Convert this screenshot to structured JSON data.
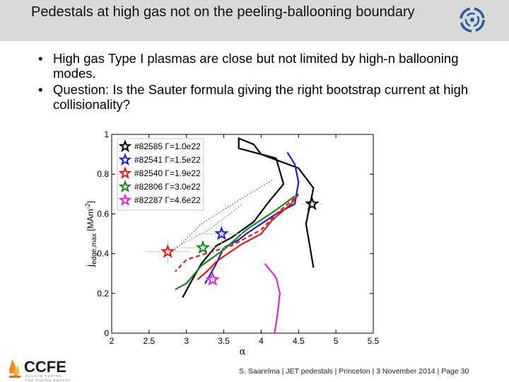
{
  "slide": {
    "title": "Pedestals at high gas not on the peeling-ballooning boundary",
    "bullets": [
      "High gas Type I plasmas are close but not limited by high-n ballooning modes.",
      "Question: Is the Sauter formula giving the right bootstrap current at high collisionality?"
    ],
    "footer": "S. Saarelma | JET pedestals | Princeton | 3 November 2014 | Page 30",
    "ccfe_logo": {
      "letters": "CCFE",
      "tagline_1": "CULHAM CENTRE",
      "tagline_2": "FOR FUSION ENERGY"
    }
  },
  "icons": {
    "top_right_logo": "jet-swirl-logo-icon",
    "bottom_left_logo": "ccfe-flame-logo-icon"
  },
  "chart_data": {
    "type": "line",
    "xlabel": "α",
    "ylabel_main": "j",
    "ylabel_sub": "edge,max",
    "ylabel_unit": "[MAm",
    "ylabel_exp": "-2",
    "ylabel_end": "]",
    "xlim": [
      2,
      5.5
    ],
    "ylim": [
      0,
      1
    ],
    "xticks": [
      2,
      2.5,
      3,
      3.5,
      4,
      4.5,
      5,
      5.5
    ],
    "yticks": [
      0,
      0.2,
      0.4,
      0.6,
      0.8,
      1
    ],
    "legend_position": "top-left",
    "legend": [
      {
        "label": "#82585 Γ=1.0e22",
        "color": "#000000"
      },
      {
        "label": "#82541 Γ=1.5e22",
        "color": "#1c1cd6"
      },
      {
        "label": "#82540 Γ=1.9e22",
        "color": "#e0191f"
      },
      {
        "label": "#82806 Γ=3.0e22",
        "color": "#16881f"
      },
      {
        "label": "#82287 Γ=4.6e22",
        "color": "#e024d8"
      }
    ],
    "boundaries": [
      {
        "color": "#000000",
        "points": [
          [
            4.7,
            0.33
          ],
          [
            4.6,
            0.55
          ],
          [
            4.7,
            0.73
          ],
          [
            4.5,
            0.83
          ],
          [
            4.0,
            0.9
          ],
          [
            3.9,
            0.95
          ],
          [
            3.7,
            0.98
          ],
          [
            3.7,
            0.93
          ],
          [
            4.2,
            0.88
          ],
          [
            4.3,
            0.75
          ],
          [
            4.1,
            0.66
          ],
          [
            3.9,
            0.56
          ],
          [
            3.75,
            0.52
          ],
          [
            3.6,
            0.48
          ],
          [
            3.4,
            0.44
          ],
          [
            3.2,
            0.35
          ],
          [
            3.05,
            0.25
          ],
          [
            2.95,
            0.18
          ]
        ]
      },
      {
        "color": "#1c1cd6",
        "points": [
          [
            4.35,
            0.91
          ],
          [
            4.45,
            0.85
          ],
          [
            4.5,
            0.76
          ],
          [
            4.45,
            0.65
          ],
          [
            4.2,
            0.6
          ],
          [
            4.0,
            0.55
          ],
          [
            3.8,
            0.5
          ],
          [
            3.7,
            0.47
          ],
          [
            3.5,
            0.43
          ],
          [
            3.4,
            0.35
          ],
          [
            3.25,
            0.25
          ]
        ]
      },
      {
        "color": "#e0191f",
        "points": [
          [
            4.5,
            0.7
          ],
          [
            4.4,
            0.65
          ],
          [
            4.15,
            0.57
          ],
          [
            4.0,
            0.5
          ],
          [
            3.75,
            0.45
          ],
          [
            3.55,
            0.4
          ],
          [
            3.4,
            0.36
          ],
          [
            3.3,
            0.32
          ],
          [
            3.15,
            0.27
          ]
        ]
      },
      {
        "color": "#e0191f",
        "dashed": true,
        "points": [
          [
            4.45,
            0.68
          ],
          [
            4.2,
            0.6
          ],
          [
            4.0,
            0.52
          ],
          [
            3.6,
            0.44
          ],
          [
            3.0,
            0.37
          ],
          [
            2.85,
            0.31
          ]
        ]
      },
      {
        "color": "#16881f",
        "points": [
          [
            4.45,
            0.69
          ],
          [
            4.2,
            0.62
          ],
          [
            3.8,
            0.52
          ],
          [
            3.5,
            0.42
          ],
          [
            3.2,
            0.34
          ],
          [
            3.0,
            0.25
          ],
          [
            2.85,
            0.22
          ]
        ]
      },
      {
        "color": "#e024d8",
        "points": [
          [
            4.05,
            0.35
          ],
          [
            4.2,
            0.28
          ],
          [
            4.25,
            0.2
          ],
          [
            4.22,
            0.1
          ],
          [
            4.18,
            0.0
          ]
        ]
      },
      {
        "color": "#1c1cd6",
        "dotted": true,
        "points": [
          [
            2.85,
            0.42
          ],
          [
            3.2,
            0.55
          ],
          [
            3.75,
            0.68
          ],
          [
            4.15,
            0.77
          ]
        ]
      },
      {
        "color": "#16881f",
        "dotted": true,
        "points": [
          [
            2.8,
            0.42
          ],
          [
            3.3,
            0.52
          ],
          [
            3.75,
            0.65
          ]
        ]
      }
    ],
    "points": [
      {
        "x": 4.68,
        "y": 0.65,
        "color": "#000000",
        "xerr": 0.15,
        "yerr": 0.0
      },
      {
        "x": 3.47,
        "y": 0.5,
        "color": "#1c1cd6",
        "xerr": 0.3,
        "yerr": 0.06
      },
      {
        "x": 2.75,
        "y": 0.41,
        "color": "#e0191f",
        "xerr": 0.3,
        "yerr": 0.06
      },
      {
        "x": 3.22,
        "y": 0.43,
        "color": "#16881f",
        "xerr": 0.3,
        "yerr": 0.03
      },
      {
        "x": 3.35,
        "y": 0.27,
        "color": "#e024d8",
        "xerr": 0.1,
        "yerr": 0.03
      }
    ]
  }
}
